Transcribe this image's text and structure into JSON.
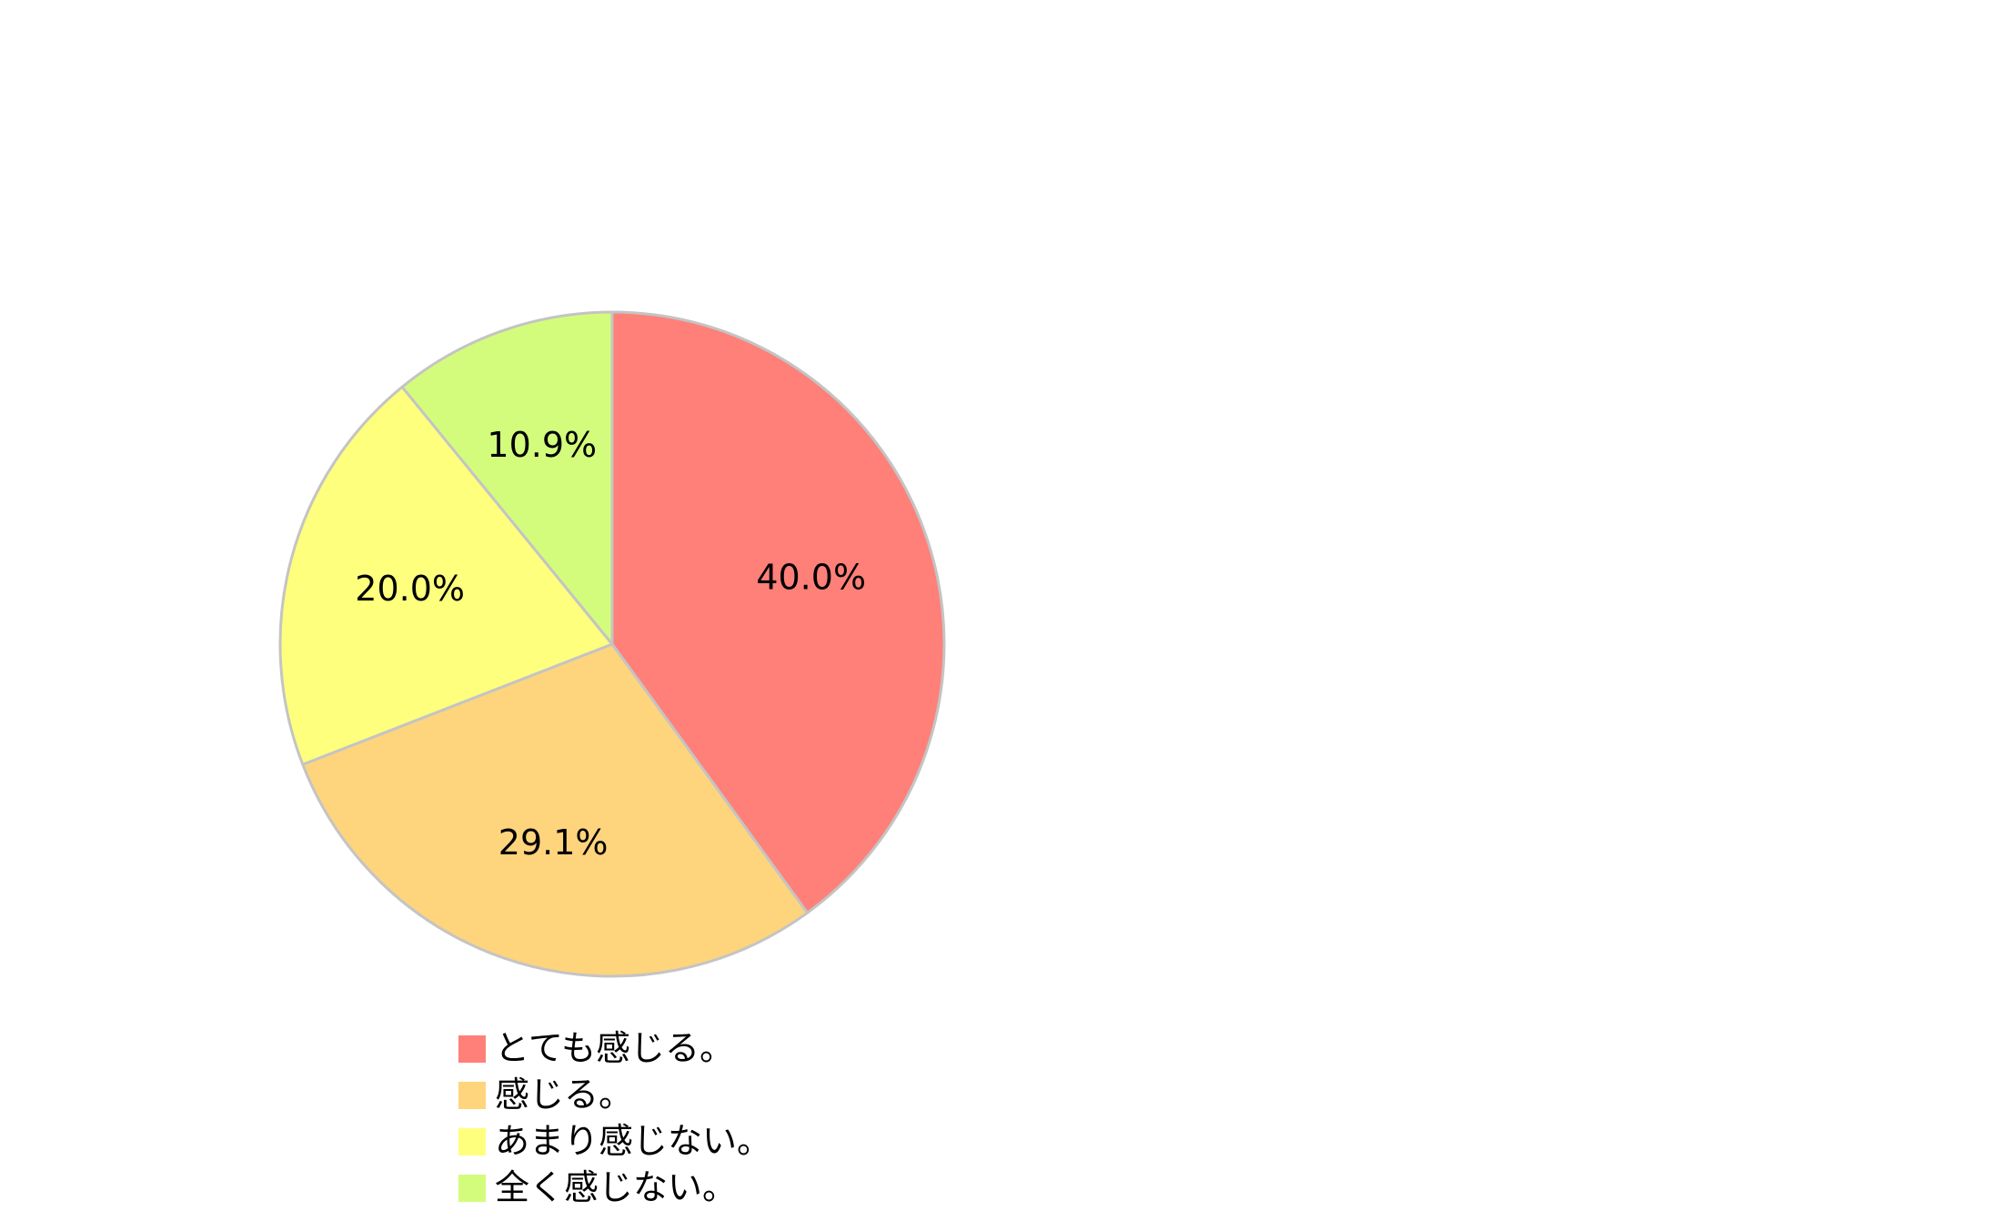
{
  "chart_data": {
    "type": "pie",
    "title": "",
    "categories": [
      "とても感じる。",
      "感じる。",
      "あまり感じない。",
      "全く感じない。"
    ],
    "values": [
      40.0,
      29.1,
      20.0,
      10.9
    ],
    "value_labels": [
      "40.0%",
      "29.1%",
      "20.0%",
      "10.9%"
    ],
    "unit": "%",
    "start_angle_deg": 0,
    "direction": "clockwise",
    "legend_position": "bottom",
    "colors": [
      "#ff8078",
      "#fed47d",
      "#ffff7e",
      "#d4fc7c"
    ],
    "slice_border_color": "#c4c4c4"
  }
}
